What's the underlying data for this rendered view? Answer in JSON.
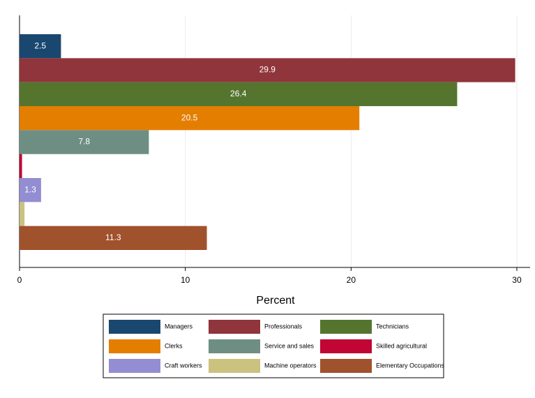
{
  "chart_data": {
    "type": "bar",
    "orientation": "horizontal",
    "x_label": "Percent",
    "categories": [
      "Managers",
      "Professionals",
      "Technicians",
      "Clerks",
      "Service and sales",
      "Skilled agricultural",
      "Craft workers",
      "Machine operators",
      "Elementary Occupations"
    ],
    "values": [
      2.5,
      29.9,
      26.4,
      20.5,
      7.8,
      0.15,
      1.3,
      0.3,
      11.3
    ],
    "colors": [
      "#1a476f",
      "#90353b",
      "#55752f",
      "#e37e00",
      "#6e8e84",
      "#c10534",
      "#938dd2",
      "#cac27e",
      "#a0522d"
    ],
    "xlim": [
      0,
      30.8
    ],
    "xticks": [
      0,
      10,
      20,
      30
    ],
    "grid": true
  }
}
